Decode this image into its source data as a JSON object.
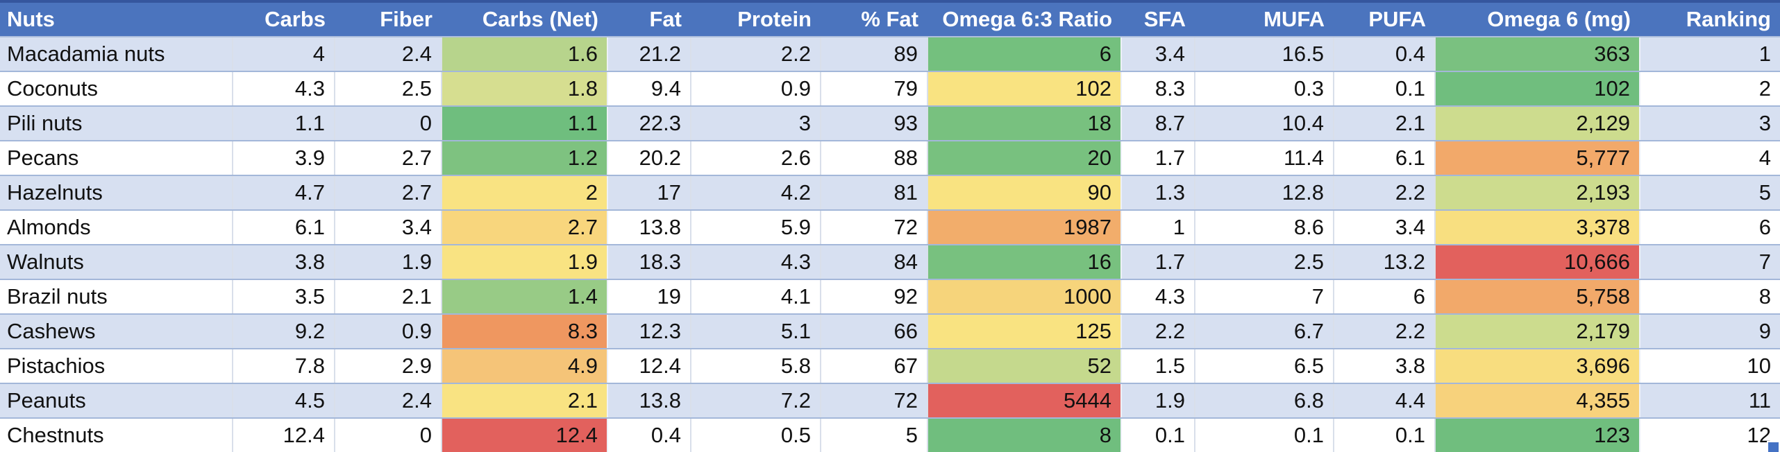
{
  "colors": {
    "header_bg": "#4B74BE",
    "header_text": "#FFFFFF",
    "row_alt_bg": "#D7E0F1",
    "row_bg": "#FFFFFF",
    "gridline": "#A3B7D9",
    "fill_handle": "#4472C4",
    "scale_green": "#6FBE7E",
    "scale_yellow": "#F9E382",
    "scale_orange": "#F2A96A",
    "scale_red": "#E2615D"
  },
  "table": {
    "columns": [
      {
        "key": "nuts",
        "label": "Nuts"
      },
      {
        "key": "carbs",
        "label": "Carbs"
      },
      {
        "key": "fiber",
        "label": "Fiber"
      },
      {
        "key": "carbs_net",
        "label": "Carbs (Net)"
      },
      {
        "key": "fat",
        "label": "Fat"
      },
      {
        "key": "protein",
        "label": "Protein"
      },
      {
        "key": "pct_fat",
        "label": "% Fat"
      },
      {
        "key": "omega_ratio",
        "label": "Omega 6:3 Ratio"
      },
      {
        "key": "sfa",
        "label": "SFA"
      },
      {
        "key": "mufa",
        "label": "MUFA"
      },
      {
        "key": "pufa",
        "label": "PUFA"
      },
      {
        "key": "omega6_mg",
        "label": "Omega 6 (mg)"
      },
      {
        "key": "ranking",
        "label": "Ranking"
      }
    ],
    "rows": [
      {
        "cells": [
          {
            "v": "Macadamia nuts"
          },
          {
            "v": "4"
          },
          {
            "v": "2.4"
          },
          {
            "v": "1.6",
            "bg": "#B7D48C"
          },
          {
            "v": "21.2"
          },
          {
            "v": "2.2"
          },
          {
            "v": "89"
          },
          {
            "v": "6",
            "bg": "#74C07E"
          },
          {
            "v": "3.4"
          },
          {
            "v": "16.5"
          },
          {
            "v": "0.4"
          },
          {
            "v": "363",
            "bg": "#7AC180"
          },
          {
            "v": "1"
          }
        ]
      },
      {
        "cells": [
          {
            "v": "Coconuts"
          },
          {
            "v": "4.3"
          },
          {
            "v": "2.5"
          },
          {
            "v": "1.8",
            "bg": "#D6DE90"
          },
          {
            "v": "9.4"
          },
          {
            "v": "0.9"
          },
          {
            "v": "79"
          },
          {
            "v": "102",
            "bg": "#F9E381"
          },
          {
            "v": "8.3"
          },
          {
            "v": "0.3"
          },
          {
            "v": "0.1"
          },
          {
            "v": "102",
            "bg": "#70BE7E"
          },
          {
            "v": "2"
          }
        ]
      },
      {
        "cells": [
          {
            "v": "Pili nuts"
          },
          {
            "v": "1.1"
          },
          {
            "v": "0"
          },
          {
            "v": "1.1",
            "bg": "#6FBE7E"
          },
          {
            "v": "22.3"
          },
          {
            "v": "3"
          },
          {
            "v": "93"
          },
          {
            "v": "18",
            "bg": "#78C17F"
          },
          {
            "v": "8.7"
          },
          {
            "v": "10.4"
          },
          {
            "v": "2.1"
          },
          {
            "v": "2,129",
            "bg": "#CDDC8E"
          },
          {
            "v": "3"
          }
        ]
      },
      {
        "cells": [
          {
            "v": "Pecans"
          },
          {
            "v": "3.9"
          },
          {
            "v": "2.7"
          },
          {
            "v": "1.2",
            "bg": "#7EC280"
          },
          {
            "v": "20.2"
          },
          {
            "v": "2.6"
          },
          {
            "v": "88"
          },
          {
            "v": "20",
            "bg": "#78C17F"
          },
          {
            "v": "1.7"
          },
          {
            "v": "11.4"
          },
          {
            "v": "6.1"
          },
          {
            "v": "5,777",
            "bg": "#F2A96A"
          },
          {
            "v": "4"
          }
        ]
      },
      {
        "cells": [
          {
            "v": "Hazelnuts"
          },
          {
            "v": "4.7"
          },
          {
            "v": "2.7"
          },
          {
            "v": "2",
            "bg": "#F9E382"
          },
          {
            "v": "17"
          },
          {
            "v": "4.2"
          },
          {
            "v": "81"
          },
          {
            "v": "90",
            "bg": "#F9E381"
          },
          {
            "v": "1.3"
          },
          {
            "v": "12.8"
          },
          {
            "v": "2.2"
          },
          {
            "v": "2,193",
            "bg": "#CDDC8E"
          },
          {
            "v": "5"
          }
        ]
      },
      {
        "cells": [
          {
            "v": "Almonds"
          },
          {
            "v": "6.1"
          },
          {
            "v": "3.4"
          },
          {
            "v": "2.7",
            "bg": "#F8D67D"
          },
          {
            "v": "13.8"
          },
          {
            "v": "5.9"
          },
          {
            "v": "72"
          },
          {
            "v": "1987",
            "bg": "#F2AD6B"
          },
          {
            "v": "1"
          },
          {
            "v": "8.6"
          },
          {
            "v": "3.4"
          },
          {
            "v": "3,378",
            "bg": "#F8DF80"
          },
          {
            "v": "6"
          }
        ]
      },
      {
        "cells": [
          {
            "v": "Walnuts"
          },
          {
            "v": "3.8"
          },
          {
            "v": "1.9"
          },
          {
            "v": "1.9",
            "bg": "#F9E382"
          },
          {
            "v": "18.3"
          },
          {
            "v": "4.3"
          },
          {
            "v": "84"
          },
          {
            "v": "16",
            "bg": "#78C17F"
          },
          {
            "v": "1.7"
          },
          {
            "v": "2.5"
          },
          {
            "v": "13.2"
          },
          {
            "v": "10,666",
            "bg": "#E2615D"
          },
          {
            "v": "7"
          }
        ]
      },
      {
        "cells": [
          {
            "v": "Brazil nuts"
          },
          {
            "v": "3.5"
          },
          {
            "v": "2.1"
          },
          {
            "v": "1.4",
            "bg": "#98CB86"
          },
          {
            "v": "19"
          },
          {
            "v": "4.1"
          },
          {
            "v": "92"
          },
          {
            "v": "1000",
            "bg": "#F6D47B"
          },
          {
            "v": "4.3"
          },
          {
            "v": "7"
          },
          {
            "v": "6"
          },
          {
            "v": "5,758",
            "bg": "#F2A96A"
          },
          {
            "v": "8"
          }
        ]
      },
      {
        "cells": [
          {
            "v": "Cashews"
          },
          {
            "v": "9.2"
          },
          {
            "v": "0.9"
          },
          {
            "v": "8.3",
            "bg": "#EF9760"
          },
          {
            "v": "12.3"
          },
          {
            "v": "5.1"
          },
          {
            "v": "66"
          },
          {
            "v": "125",
            "bg": "#F9E381"
          },
          {
            "v": "2.2"
          },
          {
            "v": "6.7"
          },
          {
            "v": "2.2"
          },
          {
            "v": "2,179",
            "bg": "#CCDC8E"
          },
          {
            "v": "9"
          }
        ]
      },
      {
        "cells": [
          {
            "v": "Pistachios"
          },
          {
            "v": "7.8"
          },
          {
            "v": "2.9"
          },
          {
            "v": "4.9",
            "bg": "#F5C478"
          },
          {
            "v": "12.4"
          },
          {
            "v": "5.8"
          },
          {
            "v": "67"
          },
          {
            "v": "52",
            "bg": "#C5D98D"
          },
          {
            "v": "1.5"
          },
          {
            "v": "6.5"
          },
          {
            "v": "3.8"
          },
          {
            "v": "3,696",
            "bg": "#F8DD7F"
          },
          {
            "v": "10"
          }
        ]
      },
      {
        "cells": [
          {
            "v": "Peanuts"
          },
          {
            "v": "4.5"
          },
          {
            "v": "2.4"
          },
          {
            "v": "2.1",
            "bg": "#F9E382"
          },
          {
            "v": "13.8"
          },
          {
            "v": "7.2"
          },
          {
            "v": "72"
          },
          {
            "v": "5444",
            "bg": "#E2615D"
          },
          {
            "v": "1.9"
          },
          {
            "v": "6.8"
          },
          {
            "v": "4.4"
          },
          {
            "v": "4,355",
            "bg": "#F7D27C"
          },
          {
            "v": "11"
          }
        ]
      },
      {
        "cells": [
          {
            "v": "Chestnuts"
          },
          {
            "v": "12.4"
          },
          {
            "v": "0"
          },
          {
            "v": "12.4",
            "bg": "#E2615D"
          },
          {
            "v": "0.4"
          },
          {
            "v": "0.5"
          },
          {
            "v": "5"
          },
          {
            "v": "8",
            "bg": "#70BE7E"
          },
          {
            "v": "0.1"
          },
          {
            "v": "0.1"
          },
          {
            "v": "0.1"
          },
          {
            "v": "123",
            "bg": "#70BE7E"
          },
          {
            "v": "12"
          }
        ]
      }
    ]
  }
}
